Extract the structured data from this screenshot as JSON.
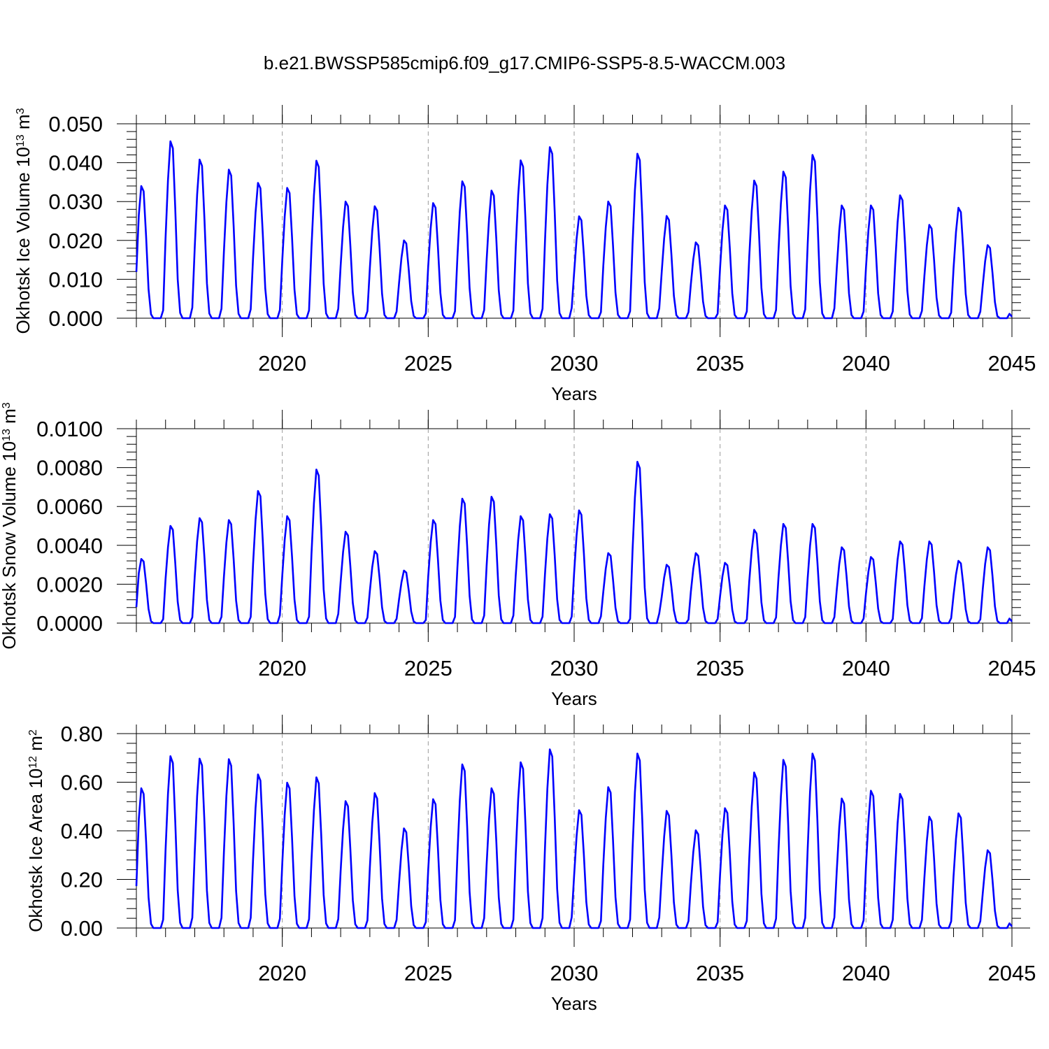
{
  "title": "b.e21.BWSSP585cmip6.f09_g17.CMIP6-SSP5-8.5-WACCM.003",
  "colors": {
    "series": "#0000ff",
    "grid": "#999999",
    "axis": "#000000"
  },
  "chart_data": [
    {
      "type": "line",
      "ylabel": "Okhotsk Ice Volume",
      "yunit_base": "10",
      "yunit_exp": "13",
      "yunit_unit": "m",
      "yunit_unit_exp": "3",
      "xlabel": "Years",
      "xlim": [
        2015,
        2045
      ],
      "ylim": [
        0,
        0.05
      ],
      "xticks": [
        2020,
        2025,
        2030,
        2035,
        2040,
        2045
      ],
      "yticks": [
        "0.000",
        "0.010",
        "0.020",
        "0.030",
        "0.040",
        "0.050"
      ],
      "grid": "vertical dashed at major x ticks",
      "series": [
        {
          "peaks": [
            0.034,
            0.0455,
            0.0408,
            0.0382,
            0.0348,
            0.0335,
            0.0405,
            0.03,
            0.0288,
            0.02,
            0.0296,
            0.0352,
            0.0328,
            0.0406,
            0.044,
            0.0262,
            0.03,
            0.0423,
            0.0263,
            0.0195,
            0.029,
            0.0354,
            0.0377,
            0.042,
            0.029,
            0.029,
            0.0316,
            0.024,
            0.0284,
            0.0188
          ]
        }
      ]
    },
    {
      "type": "line",
      "ylabel": "Okhotsk Snow Volume",
      "yunit_base": "10",
      "yunit_exp": "13",
      "yunit_unit": "m",
      "yunit_unit_exp": "3",
      "xlabel": "Years",
      "xlim": [
        2015,
        2045
      ],
      "ylim": [
        0,
        0.01
      ],
      "xticks": [
        2020,
        2025,
        2030,
        2035,
        2040,
        2045
      ],
      "yticks": [
        "0.0000",
        "0.0020",
        "0.0040",
        "0.0060",
        "0.0080",
        "0.0100"
      ],
      "grid": "vertical dashed at major x ticks",
      "series": [
        {
          "peaks": [
            0.0033,
            0.005,
            0.0054,
            0.0053,
            0.0068,
            0.0055,
            0.0079,
            0.0047,
            0.0037,
            0.0027,
            0.0053,
            0.0064,
            0.0065,
            0.0055,
            0.0056,
            0.0058,
            0.0036,
            0.0083,
            0.003,
            0.0036,
            0.0031,
            0.0048,
            0.0051,
            0.0051,
            0.0039,
            0.0034,
            0.0042,
            0.0042,
            0.0032,
            0.0039
          ]
        }
      ]
    },
    {
      "type": "line",
      "ylabel": "Okhotsk Ice Area",
      "yunit_base": "10",
      "yunit_exp": "12",
      "yunit_unit": "m",
      "yunit_unit_exp": "2",
      "xlabel": "Years",
      "xlim": [
        2015,
        2045
      ],
      "ylim": [
        0,
        0.8
      ],
      "xticks": [
        2020,
        2025,
        2030,
        2035,
        2040,
        2045
      ],
      "yticks": [
        "0.00",
        "0.20",
        "0.40",
        "0.60",
        "0.80"
      ],
      "grid": "vertical dashed at major x ticks",
      "series": [
        {
          "peaks": [
            0.575,
            0.707,
            0.697,
            0.695,
            0.632,
            0.598,
            0.62,
            0.522,
            0.555,
            0.41,
            0.53,
            0.673,
            0.575,
            0.682,
            0.735,
            0.485,
            0.58,
            0.718,
            0.482,
            0.402,
            0.493,
            0.64,
            0.692,
            0.718,
            0.533,
            0.565,
            0.552,
            0.458,
            0.472,
            0.32
          ]
        }
      ]
    }
  ]
}
